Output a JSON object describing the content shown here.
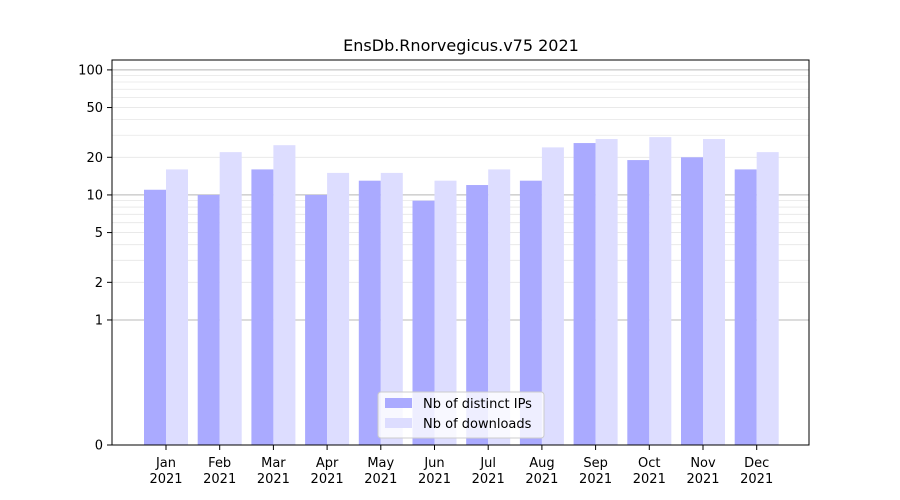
{
  "chart_data": {
    "type": "bar",
    "title": "EnsDb.Rnorvegicus.v75 2021",
    "xlabel": "",
    "ylabel": "",
    "categories": [
      "Jan\n2021",
      "Feb\n2021",
      "Mar\n2021",
      "Apr\n2021",
      "May\n2021",
      "Jun\n2021",
      "Jul\n2021",
      "Aug\n2021",
      "Sep\n2021",
      "Oct\n2021",
      "Nov\n2021",
      "Dec\n2021"
    ],
    "series": [
      {
        "name": "Nb of distinct IPs",
        "color": "#aaaaff",
        "values": [
          11,
          10,
          16,
          10,
          13,
          9,
          12,
          13,
          26,
          19,
          20,
          16
        ]
      },
      {
        "name": "Nb of downloads",
        "color": "#ddddff",
        "values": [
          16,
          22,
          25,
          15,
          15,
          13,
          16,
          24,
          28,
          29,
          28,
          22
        ]
      }
    ],
    "y_scale": "symlog",
    "ylim": [
      0,
      120
    ],
    "y_ticks": [
      0,
      1,
      2,
      5,
      10,
      20,
      50,
      100
    ],
    "y_tick_labels": [
      "0",
      "1",
      "2",
      "5",
      "10",
      "20",
      "50",
      "100"
    ],
    "grid": true,
    "legend_position": "bottom-center"
  }
}
